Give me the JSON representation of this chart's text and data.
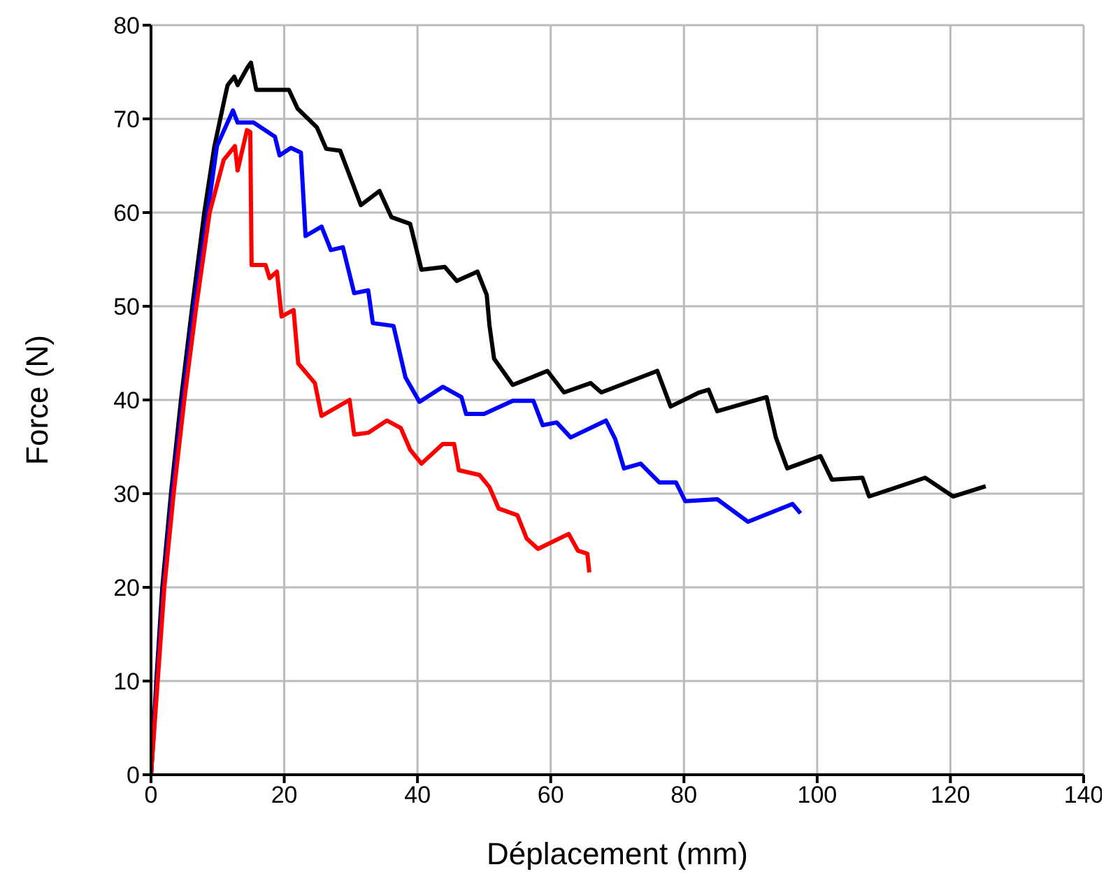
{
  "chart_data": {
    "type": "line",
    "xlabel": "Déplacement (mm)",
    "ylabel": "Force (N)",
    "xlim": [
      0,
      140
    ],
    "xticks": [
      0,
      20,
      40,
      60,
      80,
      100,
      120,
      140
    ],
    "ylim": [
      0,
      80
    ],
    "yticks": [
      0,
      10,
      20,
      30,
      40,
      50,
      60,
      70,
      80
    ],
    "grid": true,
    "marker": "none",
    "line_style": "solid",
    "series": [
      {
        "color": "#000000",
        "x": [
          0,
          0.8,
          1.7,
          3,
          4.5,
          6.2,
          8,
          9.5,
          11,
          11.5,
          12.5,
          13,
          14.5,
          15,
          15.8,
          20.7,
          22,
          24.9,
          26.3,
          28.4,
          31.5,
          34.3,
          36.1,
          38.9,
          40.6,
          44.1,
          45.9,
          49,
          50.4,
          50.8,
          51.5,
          54.3,
          59.5,
          62,
          66,
          67.6,
          76,
          78,
          82.3,
          83.7,
          85,
          92.4,
          93.8,
          95.5,
          100.5,
          102.2,
          106.8,
          107.8,
          116.2,
          120.4,
          125.3
        ],
        "values": [
          0,
          10,
          20,
          30,
          40,
          50,
          60,
          67,
          72,
          73.6,
          74.5,
          73.6,
          75.5,
          76,
          73.1,
          73.1,
          71.1,
          69.1,
          66.8,
          66.6,
          60.8,
          62.3,
          59.5,
          58.8,
          53.9,
          54.2,
          52.7,
          53.7,
          51.2,
          48,
          44.4,
          41.6,
          43.1,
          40.8,
          41.8,
          40.8,
          43.1,
          39.3,
          40.8,
          41.1,
          38.8,
          40.3,
          36,
          32.7,
          34,
          31.5,
          31.7,
          29.7,
          31.7,
          29.7,
          30.8
        ]
      },
      {
        "color": "#0000ff",
        "x": [
          0,
          0.9,
          1.9,
          3.2,
          4.8,
          6.5,
          8.5,
          9.9,
          12.3,
          13,
          15.4,
          18.6,
          19.3,
          21,
          22.5,
          23.2,
          25.6,
          27,
          28.8,
          30.5,
          32.6,
          33.3,
          36.4,
          38.2,
          40.3,
          43.8,
          46.6,
          47.3,
          50,
          54.3,
          57.4,
          58.8,
          60.9,
          63,
          68.3,
          69.7,
          71,
          73.5,
          76.3,
          78.8,
          80.2,
          85,
          89.6,
          96.3,
          97.5
        ],
        "values": [
          0,
          10,
          20,
          30,
          40,
          50,
          60,
          67.1,
          70.9,
          69.6,
          69.6,
          68.1,
          66.1,
          66.9,
          66.4,
          57.5,
          58.5,
          56,
          56.3,
          51.4,
          51.7,
          48.2,
          47.9,
          42.4,
          39.8,
          41.4,
          40.3,
          38.5,
          38.5,
          39.9,
          39.9,
          37.3,
          37.6,
          36,
          37.8,
          35.8,
          32.7,
          33.2,
          31.2,
          31.2,
          29.2,
          29.4,
          27,
          28.9,
          27.9
        ]
      },
      {
        "color": "#ff0000",
        "x": [
          0,
          1,
          2,
          3.4,
          5,
          6.8,
          8.8,
          10.9,
          12.6,
          13,
          14.4,
          14.9,
          15.1,
          17.2,
          17.8,
          18.9,
          19.6,
          21.4,
          22.1,
          24.6,
          25.6,
          29.8,
          30.5,
          32.6,
          35.4,
          37.5,
          38.9,
          40.6,
          43.8,
          45.5,
          46.2,
          49.3,
          50.8,
          52.2,
          55,
          56.4,
          58.1,
          62.7,
          64.1,
          65.5,
          65.8
        ],
        "values": [
          0,
          10,
          20,
          30,
          40,
          50,
          60,
          65.6,
          67.1,
          64.5,
          68.8,
          68.6,
          54.4,
          54.4,
          53,
          53.7,
          48.9,
          49.6,
          43.9,
          41.8,
          38.3,
          40,
          36.3,
          36.5,
          37.8,
          37,
          34.7,
          33.2,
          35.3,
          35.3,
          32.5,
          32,
          30.7,
          28.4,
          27.7,
          25.2,
          24.1,
          25.7,
          23.9,
          23.6,
          21.6
        ]
      }
    ]
  }
}
